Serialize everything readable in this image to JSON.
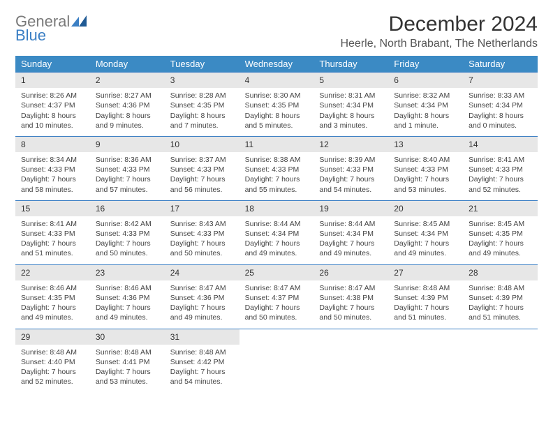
{
  "logo": {
    "general": "General",
    "blue": "Blue"
  },
  "title": "December 2024",
  "location": "Heerle, North Brabant, The Netherlands",
  "colors": {
    "header_bg": "#3b8ac4",
    "header_text": "#ffffff",
    "daynum_bg": "#e7e7e7",
    "week_border": "#3b7fc4",
    "text": "#444444",
    "logo_general": "#7a7a7a",
    "logo_blue": "#3b7fc4"
  },
  "weekdays": [
    "Sunday",
    "Monday",
    "Tuesday",
    "Wednesday",
    "Thursday",
    "Friday",
    "Saturday"
  ],
  "days": [
    {
      "n": 1,
      "sunrise": "8:26 AM",
      "sunset": "4:37 PM",
      "daylight": "8 hours and 10 minutes."
    },
    {
      "n": 2,
      "sunrise": "8:27 AM",
      "sunset": "4:36 PM",
      "daylight": "8 hours and 9 minutes."
    },
    {
      "n": 3,
      "sunrise": "8:28 AM",
      "sunset": "4:35 PM",
      "daylight": "8 hours and 7 minutes."
    },
    {
      "n": 4,
      "sunrise": "8:30 AM",
      "sunset": "4:35 PM",
      "daylight": "8 hours and 5 minutes."
    },
    {
      "n": 5,
      "sunrise": "8:31 AM",
      "sunset": "4:34 PM",
      "daylight": "8 hours and 3 minutes."
    },
    {
      "n": 6,
      "sunrise": "8:32 AM",
      "sunset": "4:34 PM",
      "daylight": "8 hours and 1 minute."
    },
    {
      "n": 7,
      "sunrise": "8:33 AM",
      "sunset": "4:34 PM",
      "daylight": "8 hours and 0 minutes."
    },
    {
      "n": 8,
      "sunrise": "8:34 AM",
      "sunset": "4:33 PM",
      "daylight": "7 hours and 58 minutes."
    },
    {
      "n": 9,
      "sunrise": "8:36 AM",
      "sunset": "4:33 PM",
      "daylight": "7 hours and 57 minutes."
    },
    {
      "n": 10,
      "sunrise": "8:37 AM",
      "sunset": "4:33 PM",
      "daylight": "7 hours and 56 minutes."
    },
    {
      "n": 11,
      "sunrise": "8:38 AM",
      "sunset": "4:33 PM",
      "daylight": "7 hours and 55 minutes."
    },
    {
      "n": 12,
      "sunrise": "8:39 AM",
      "sunset": "4:33 PM",
      "daylight": "7 hours and 54 minutes."
    },
    {
      "n": 13,
      "sunrise": "8:40 AM",
      "sunset": "4:33 PM",
      "daylight": "7 hours and 53 minutes."
    },
    {
      "n": 14,
      "sunrise": "8:41 AM",
      "sunset": "4:33 PM",
      "daylight": "7 hours and 52 minutes."
    },
    {
      "n": 15,
      "sunrise": "8:41 AM",
      "sunset": "4:33 PM",
      "daylight": "7 hours and 51 minutes."
    },
    {
      "n": 16,
      "sunrise": "8:42 AM",
      "sunset": "4:33 PM",
      "daylight": "7 hours and 50 minutes."
    },
    {
      "n": 17,
      "sunrise": "8:43 AM",
      "sunset": "4:33 PM",
      "daylight": "7 hours and 50 minutes."
    },
    {
      "n": 18,
      "sunrise": "8:44 AM",
      "sunset": "4:34 PM",
      "daylight": "7 hours and 49 minutes."
    },
    {
      "n": 19,
      "sunrise": "8:44 AM",
      "sunset": "4:34 PM",
      "daylight": "7 hours and 49 minutes."
    },
    {
      "n": 20,
      "sunrise": "8:45 AM",
      "sunset": "4:34 PM",
      "daylight": "7 hours and 49 minutes."
    },
    {
      "n": 21,
      "sunrise": "8:45 AM",
      "sunset": "4:35 PM",
      "daylight": "7 hours and 49 minutes."
    },
    {
      "n": 22,
      "sunrise": "8:46 AM",
      "sunset": "4:35 PM",
      "daylight": "7 hours and 49 minutes."
    },
    {
      "n": 23,
      "sunrise": "8:46 AM",
      "sunset": "4:36 PM",
      "daylight": "7 hours and 49 minutes."
    },
    {
      "n": 24,
      "sunrise": "8:47 AM",
      "sunset": "4:36 PM",
      "daylight": "7 hours and 49 minutes."
    },
    {
      "n": 25,
      "sunrise": "8:47 AM",
      "sunset": "4:37 PM",
      "daylight": "7 hours and 50 minutes."
    },
    {
      "n": 26,
      "sunrise": "8:47 AM",
      "sunset": "4:38 PM",
      "daylight": "7 hours and 50 minutes."
    },
    {
      "n": 27,
      "sunrise": "8:48 AM",
      "sunset": "4:39 PM",
      "daylight": "7 hours and 51 minutes."
    },
    {
      "n": 28,
      "sunrise": "8:48 AM",
      "sunset": "4:39 PM",
      "daylight": "7 hours and 51 minutes."
    },
    {
      "n": 29,
      "sunrise": "8:48 AM",
      "sunset": "4:40 PM",
      "daylight": "7 hours and 52 minutes."
    },
    {
      "n": 30,
      "sunrise": "8:48 AM",
      "sunset": "4:41 PM",
      "daylight": "7 hours and 53 minutes."
    },
    {
      "n": 31,
      "sunrise": "8:48 AM",
      "sunset": "4:42 PM",
      "daylight": "7 hours and 54 minutes."
    }
  ],
  "labels": {
    "sunrise": "Sunrise:",
    "sunset": "Sunset:",
    "daylight": "Daylight:"
  },
  "layout": {
    "start_weekday": 0,
    "total_cells": 35
  }
}
